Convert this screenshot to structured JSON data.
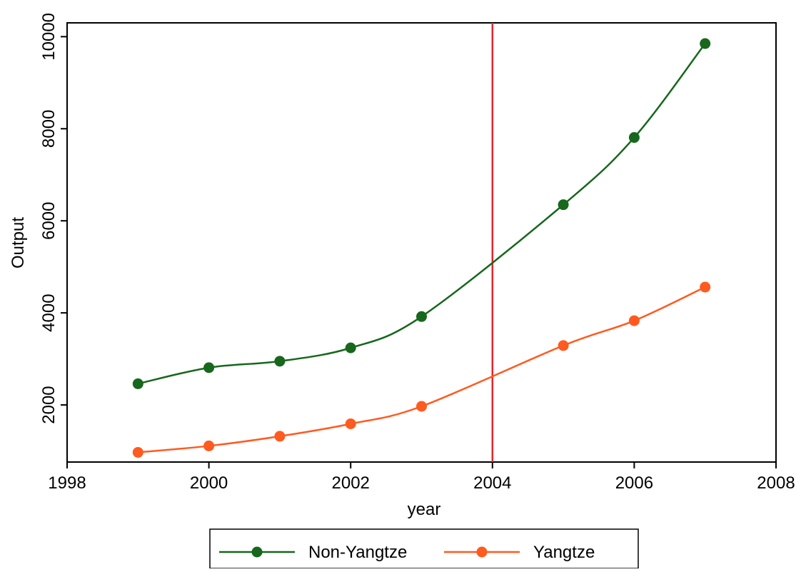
{
  "chart_data": {
    "type": "line",
    "title": "",
    "xlabel": "year",
    "ylabel": "Output",
    "x": [
      1999,
      2000,
      2001,
      2002,
      2003,
      2005,
      2006,
      2007
    ],
    "xlim": [
      1998,
      2008
    ],
    "ylim": [
      760,
      10300
    ],
    "xticks": [
      1998,
      2000,
      2002,
      2004,
      2006,
      2008
    ],
    "yticks": [
      2000,
      4000,
      6000,
      8000,
      10000
    ],
    "grid": false,
    "legend_position": "bottom",
    "reference_line": {
      "axis": "x",
      "value": 2004,
      "color": "#e8242b"
    },
    "series": [
      {
        "name": "Non-Yangtze",
        "color": "#17671c",
        "values": [
          2460,
          2810,
          2950,
          3240,
          3920,
          6350,
          7810,
          9850
        ]
      },
      {
        "name": "Yangtze",
        "color": "#ff5a1f",
        "values": [
          970,
          1110,
          1320,
          1590,
          1970,
          3290,
          3830,
          4560
        ]
      }
    ]
  }
}
